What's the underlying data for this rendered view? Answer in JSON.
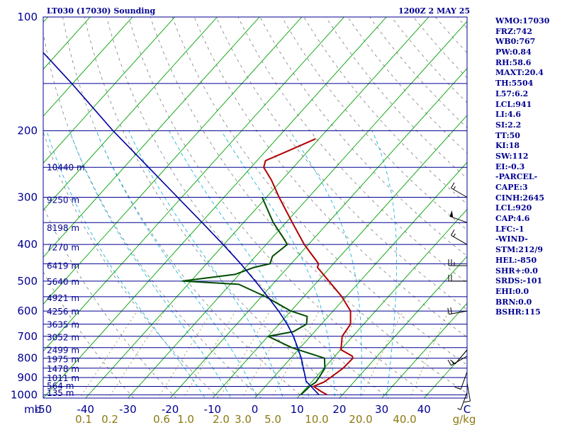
{
  "header": {
    "title_left": "LT030 (17030) Sounding",
    "title_right": "1200Z  2 MAY 25"
  },
  "stats": [
    "WMO:17030",
    "FRZ:742",
    "WB0:767",
    "PW:0.84",
    "RH:58.6",
    "MAXT:20.4",
    "TH:5504",
    "L57:6.2",
    "LCL:941",
    "LI:4.6",
    "SI:2.2",
    "TT:50",
    "KI:18",
    "SW:112",
    "EI:-0.3",
    "-PARCEL-",
    "CAPE:3",
    "CINH:2645",
    "LCL:920",
    "CAP:4.6",
    "LFC:-1",
    "-WIND-",
    "STM:212/9",
    "HEL:-850",
    "SHR+:0.0",
    "SRDS:-101",
    "EHI:0.0",
    "BRN:0.0",
    "BSHR:115"
  ],
  "colors": {
    "frame": "#000090",
    "isobar": "#000090",
    "isotherm": "#00a000",
    "dry_adiabat": "#1a1a1a",
    "moist_adiabat": "#00b0e0",
    "mixing_ratio": "#8c7a10",
    "temperature": "#b00000",
    "dewpoint": "#004d00",
    "parcel": "#0000a0",
    "wind_barb": "#000000"
  },
  "chart_data": {
    "type": "skew-t",
    "x_axis": {
      "label_prefix": "mb",
      "ticks": [
        "-50",
        "-40",
        "-30",
        "-20",
        "-10",
        "0",
        "10",
        "20",
        "30",
        "40",
        "C"
      ],
      "tick_values": [
        -50,
        -40,
        -30,
        -20,
        -10,
        0,
        10,
        20,
        30,
        40
      ],
      "unit": "C"
    },
    "y_axis": {
      "scale": "log",
      "ticks": [
        "100",
        "200",
        "300",
        "400",
        "500",
        "600",
        "700",
        "800",
        "900",
        "1000"
      ],
      "tick_values": [
        100,
        200,
        300,
        400,
        500,
        600,
        700,
        800,
        900,
        1000
      ]
    },
    "mixing_ratio_labels": [
      "0.1",
      "0.2",
      "0.6",
      "1.0",
      "2.0",
      "3.0",
      "5.0",
      "10.0",
      "20.0",
      "40.0",
      "g/kg"
    ],
    "height_labels": [
      {
        "p": 990,
        "label": "135 m"
      },
      {
        "p": 948,
        "label": "564 m"
      },
      {
        "p": 903,
        "label": "1011 m"
      },
      {
        "p": 855,
        "label": "1478 m"
      },
      {
        "p": 807,
        "label": "1975 m"
      },
      {
        "p": 762,
        "label": "2499 m"
      },
      {
        "p": 705,
        "label": "3052 m"
      },
      {
        "p": 653,
        "label": "3635 m"
      },
      {
        "p": 603,
        "label": "4256 m"
      },
      {
        "p": 555,
        "label": "4921 m"
      },
      {
        "p": 503,
        "label": "5640 m"
      },
      {
        "p": 456,
        "label": "6419 m"
      },
      {
        "p": 408,
        "label": "7270 m"
      },
      {
        "p": 362,
        "label": "8198 m"
      },
      {
        "p": 305,
        "label": "9250 m"
      },
      {
        "p": 250,
        "label": "10440 m"
      }
    ],
    "series": [
      {
        "key": "temperature",
        "points": [
          [
            1000,
            16.4
          ],
          [
            980,
            14.3
          ],
          [
            950,
            11.4
          ],
          [
            925,
            12.9
          ],
          [
            900,
            13.5
          ],
          [
            850,
            14.5
          ],
          [
            800,
            14.7
          ],
          [
            790,
            14.1
          ],
          [
            760,
            10.1
          ],
          [
            700,
            7.5
          ],
          [
            650,
            6.9
          ],
          [
            600,
            4.1
          ],
          [
            550,
            -1.0
          ],
          [
            500,
            -7.4
          ],
          [
            460,
            -13.0
          ],
          [
            450,
            -13.5
          ],
          [
            400,
            -21.0
          ],
          [
            350,
            -28.5
          ],
          [
            300,
            -37.0
          ],
          [
            270,
            -42.5
          ],
          [
            250,
            -47.0
          ],
          [
            240,
            -48.0
          ],
          [
            225,
            -44.5
          ],
          [
            210,
            -40.8
          ]
        ]
      },
      {
        "key": "dewpoint",
        "points": [
          [
            1000,
            10.2
          ],
          [
            950,
            10.5
          ],
          [
            925,
            11.0
          ],
          [
            900,
            10.8
          ],
          [
            850,
            10.2
          ],
          [
            800,
            8.0
          ],
          [
            750,
            -2.0
          ],
          [
            700,
            -10.0
          ],
          [
            680,
            -5.0
          ],
          [
            650,
            -3.5
          ],
          [
            620,
            -5.0
          ],
          [
            600,
            -10.0
          ],
          [
            550,
            -19.0
          ],
          [
            510,
            -28.0
          ],
          [
            500,
            -42.0
          ],
          [
            480,
            -31.0
          ],
          [
            460,
            -28.0
          ],
          [
            450,
            -25.0
          ],
          [
            430,
            -26.0
          ],
          [
            400,
            -25.0
          ],
          [
            380,
            -28.0
          ],
          [
            350,
            -33.0
          ],
          [
            300,
            -41.0
          ]
        ]
      },
      {
        "key": "parcel",
        "points": [
          [
            1000,
            14.5
          ],
          [
            950,
            10.8
          ],
          [
            920,
            8.5
          ],
          [
            900,
            7.6
          ],
          [
            850,
            5.1
          ],
          [
            800,
            2.5
          ],
          [
            750,
            -0.6
          ],
          [
            700,
            -4.0
          ],
          [
            650,
            -8.1
          ],
          [
            600,
            -12.9
          ],
          [
            550,
            -18.5
          ],
          [
            500,
            -24.8
          ],
          [
            450,
            -31.9
          ],
          [
            400,
            -40.2
          ],
          [
            350,
            -49.8
          ],
          [
            300,
            -61.0
          ],
          [
            250,
            -74.2
          ],
          [
            200,
            -90.4
          ],
          [
            150,
            -110.2
          ],
          [
            120,
            -126.0
          ]
        ]
      }
    ],
    "wind_barbs": [
      {
        "p": 985,
        "dir": 200,
        "spd": 5
      },
      {
        "p": 930,
        "dir": 170,
        "spd": 10
      },
      {
        "p": 870,
        "dir": 200,
        "spd": 10
      },
      {
        "p": 790,
        "dir": 240,
        "spd": 15
      },
      {
        "p": 760,
        "dir": 220,
        "spd": 10
      },
      {
        "p": 600,
        "dir": 260,
        "spd": 20
      },
      {
        "p": 500,
        "dir": 270,
        "spd": 20
      },
      {
        "p": 455,
        "dir": 270,
        "spd": 25
      },
      {
        "p": 400,
        "dir": 300,
        "spd": 15
      },
      {
        "p": 350,
        "dir": 290,
        "spd": 50
      },
      {
        "p": 300,
        "dir": 300,
        "spd": 15
      }
    ]
  }
}
